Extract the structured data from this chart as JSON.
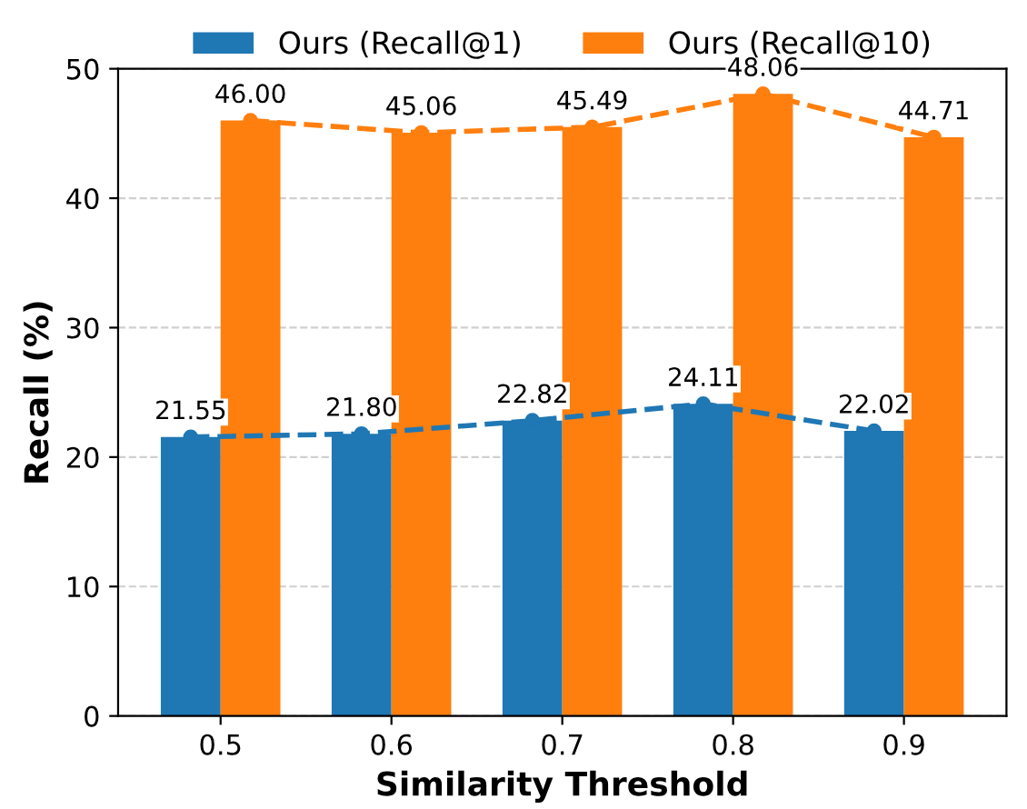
{
  "chart_data": {
    "type": "bar",
    "xlabel": "Similarity Threshold",
    "ylabel": "Recall (%)",
    "categories": [
      "0.5",
      "0.6",
      "0.7",
      "0.8",
      "0.9"
    ],
    "series": [
      {
        "name": "Ours (Recall@1)",
        "color": "#1f77b4",
        "values": [
          21.55,
          21.8,
          22.82,
          24.11,
          22.02
        ],
        "value_labels": [
          "21.55",
          "21.80",
          "22.82",
          "24.11",
          "22.02"
        ]
      },
      {
        "name": "Ours (Recall@10)",
        "color": "#ff7f0e",
        "values": [
          46.0,
          45.06,
          45.49,
          48.06,
          44.71
        ],
        "value_labels": [
          "46.00",
          "45.06",
          "45.49",
          "48.06",
          "44.71"
        ]
      },
      {
        "type": "line",
        "color": "#1f77b4",
        "values": [
          21.55,
          21.8,
          22.82,
          24.11,
          22.02
        ],
        "marker": "circle",
        "line_style": "dashed"
      },
      {
        "type": "line",
        "color": "#ff7f0e",
        "values": [
          46.0,
          45.06,
          45.49,
          48.06,
          44.71
        ],
        "marker": "circle",
        "line_style": "dashed"
      }
    ],
    "ylim": [
      0,
      50
    ],
    "yticks": [
      0,
      10,
      20,
      30,
      40,
      50
    ],
    "grid": "y",
    "legend": "top"
  }
}
